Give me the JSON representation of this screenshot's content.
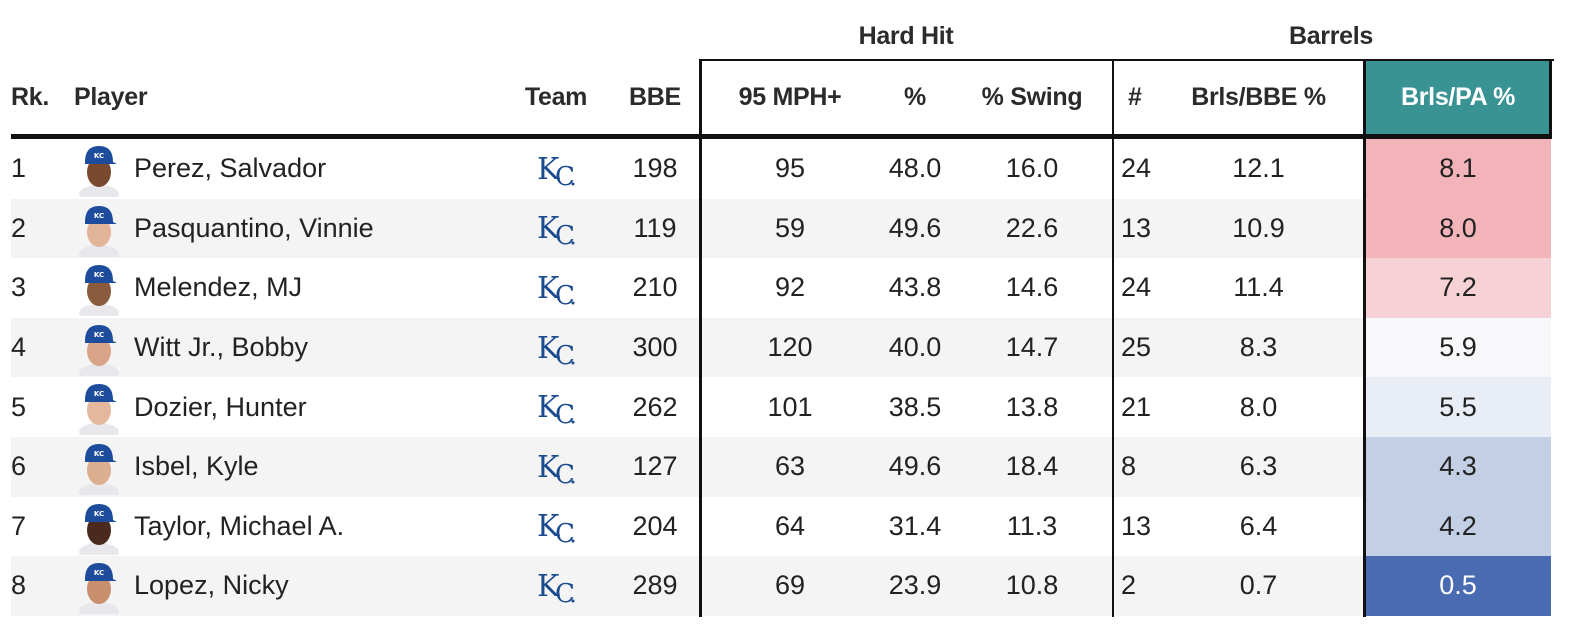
{
  "groups": {
    "hard_hit": "Hard Hit",
    "barrels": "Barrels"
  },
  "columns": {
    "rank": "Rk.",
    "player": "Player",
    "team": "Team",
    "bbe": "BBE",
    "hh_95": "95 MPH+",
    "hh_pct": "%",
    "hh_swing": "% Swing",
    "brl_num": "#",
    "brl_bbe": "Brls/BBE %",
    "brl_pa": "Brls/PA %"
  },
  "colors": {
    "highlight_header": "#3a9393",
    "scale_high": "#f3b3b8",
    "scale_mid": "#f6f6f8",
    "scale_low": "#4a6db3",
    "team_logo": "#1a4a8f"
  },
  "rows": [
    {
      "rank": "1",
      "player": "Perez, Salvador",
      "team_logo": "KC",
      "bbe": "198",
      "hh_95": "95",
      "hh_pct": "48.0",
      "hh_swing": "16.0",
      "brl_num": "24",
      "brl_bbe": "12.1",
      "brl_pa": "8.1",
      "brl_pa_bg": "#f2b4b9"
    },
    {
      "rank": "2",
      "player": "Pasquantino, Vinnie",
      "team_logo": "KC",
      "bbe": "119",
      "hh_95": "59",
      "hh_pct": "49.6",
      "hh_swing": "22.6",
      "brl_num": "13",
      "brl_bbe": "10.9",
      "brl_pa": "8.0",
      "brl_pa_bg": "#f3b5ba"
    },
    {
      "rank": "3",
      "player": "Melendez, MJ",
      "team_logo": "KC",
      "bbe": "210",
      "hh_95": "92",
      "hh_pct": "43.8",
      "hh_swing": "14.6",
      "brl_num": "24",
      "brl_bbe": "11.4",
      "brl_pa": "7.2",
      "brl_pa_bg": "#f6d1d5"
    },
    {
      "rank": "4",
      "player": "Witt Jr., Bobby",
      "team_logo": "KC",
      "bbe": "300",
      "hh_95": "120",
      "hh_pct": "40.0",
      "hh_swing": "14.7",
      "brl_num": "25",
      "brl_bbe": "8.3",
      "brl_pa": "5.9",
      "brl_pa_bg": "#f8f8fa"
    },
    {
      "rank": "5",
      "player": "Dozier, Hunter",
      "team_logo": "KC",
      "bbe": "262",
      "hh_95": "101",
      "hh_pct": "38.5",
      "hh_swing": "13.8",
      "brl_num": "21",
      "brl_bbe": "8.0",
      "brl_pa": "5.5",
      "brl_pa_bg": "#e9edf5"
    },
    {
      "rank": "6",
      "player": "Isbel, Kyle",
      "team_logo": "KC",
      "bbe": "127",
      "hh_95": "63",
      "hh_pct": "49.6",
      "hh_swing": "18.4",
      "brl_num": "8",
      "brl_bbe": "6.3",
      "brl_pa": "4.3",
      "brl_pa_bg": "#c3cfe5"
    },
    {
      "rank": "7",
      "player": "Taylor, Michael A.",
      "team_logo": "KC",
      "bbe": "204",
      "hh_95": "64",
      "hh_pct": "31.4",
      "hh_swing": "11.3",
      "brl_num": "13",
      "brl_bbe": "6.4",
      "brl_pa": "4.2",
      "brl_pa_bg": "#c3cfe5"
    },
    {
      "rank": "8",
      "player": "Lopez, Nicky",
      "team_logo": "KC",
      "bbe": "289",
      "hh_95": "69",
      "hh_pct": "23.9",
      "hh_swing": "10.8",
      "brl_num": "2",
      "brl_bbe": "0.7",
      "brl_pa": "0.5",
      "brl_pa_bg": "#486bb2",
      "brl_pa_fg": "#ffffff"
    }
  ]
}
